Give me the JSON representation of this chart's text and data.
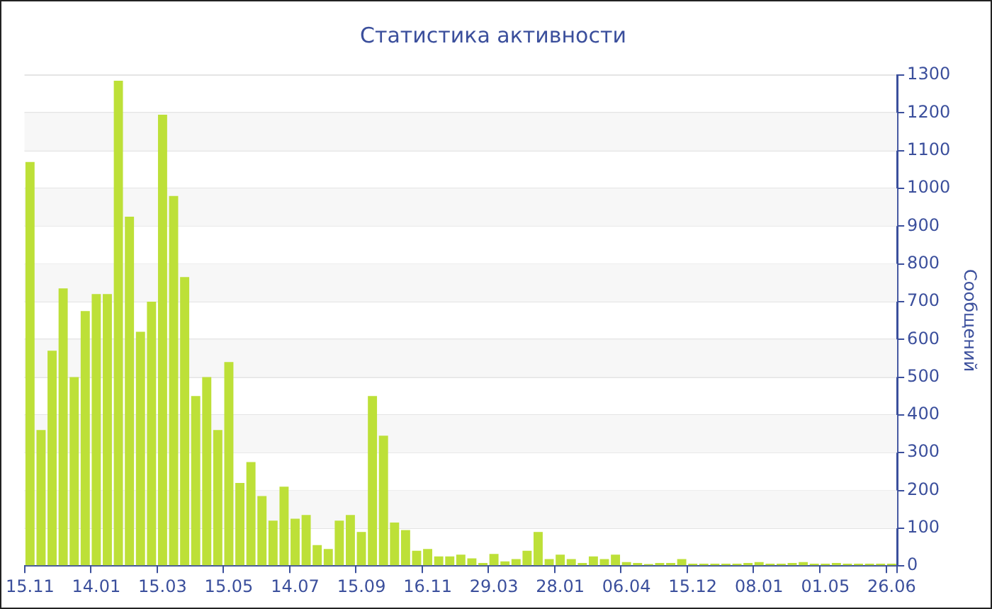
{
  "chart_data": {
    "type": "bar",
    "title": "Статистика активности",
    "ylabel": "Сообщений",
    "categories": [
      "15.11",
      null,
      null,
      null,
      null,
      null,
      "14.01",
      null,
      null,
      null,
      null,
      null,
      "15.03",
      null,
      null,
      null,
      null,
      null,
      "15.05",
      null,
      null,
      null,
      null,
      null,
      "14.07",
      null,
      null,
      null,
      null,
      null,
      "15.09",
      null,
      null,
      null,
      null,
      null,
      "16.11",
      null,
      null,
      null,
      null,
      null,
      "29.03",
      null,
      null,
      null,
      null,
      null,
      "28.01",
      null,
      null,
      null,
      null,
      null,
      "06.04",
      null,
      null,
      null,
      null,
      null,
      "15.12",
      null,
      null,
      null,
      null,
      null,
      "08.01",
      null,
      null,
      null,
      null,
      null,
      "01.05",
      null,
      null,
      null,
      null,
      null,
      "26.06"
    ],
    "values": [
      1070,
      360,
      570,
      735,
      500,
      675,
      720,
      720,
      1285,
      925,
      620,
      700,
      1195,
      980,
      765,
      450,
      500,
      360,
      540,
      220,
      275,
      185,
      120,
      210,
      125,
      135,
      55,
      45,
      120,
      135,
      90,
      450,
      345,
      115,
      95,
      40,
      45,
      25,
      25,
      30,
      20,
      8,
      32,
      12,
      18,
      40,
      90,
      18,
      30,
      18,
      8,
      25,
      18,
      30,
      10,
      8,
      5,
      8,
      8,
      18,
      6,
      6,
      6,
      6,
      6,
      8,
      10,
      6,
      6,
      8,
      10,
      6,
      6,
      8,
      6,
      6,
      6,
      6,
      6
    ],
    "color": "#bde038",
    "ylim": [
      0,
      1300
    ],
    "yticks": [
      0,
      100,
      200,
      300,
      400,
      500,
      600,
      700,
      800,
      900,
      1000,
      1100,
      1200,
      1300
    ],
    "grid": "y"
  }
}
